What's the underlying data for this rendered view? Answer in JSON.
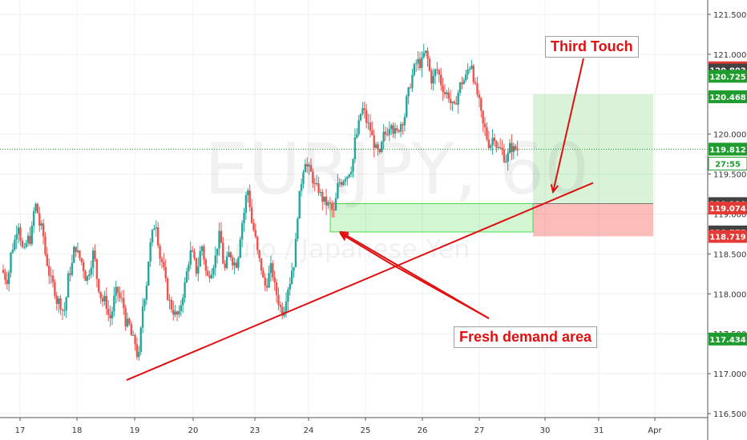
{
  "chart_data": {
    "type": "candlestick",
    "symbol_watermark": "EURJPY, 60",
    "subtitle_watermark": "Euro / Japanese Yen",
    "x_ticks": [
      "17",
      "18",
      "19",
      "20",
      "23",
      "24",
      "25",
      "26",
      "27",
      "30",
      "31",
      "Apr"
    ],
    "y_ticks": [
      "116.500",
      "117.000",
      "117.500",
      "118.000",
      "118.500",
      "119.000",
      "119.500",
      "120.000",
      "120.500",
      "121.000",
      "121.500"
    ],
    "ylim": [
      116.45,
      121.68
    ],
    "grid": true,
    "current_price": 119.812,
    "countdown": "27:55",
    "price_tags": [
      {
        "label": "120.831",
        "value": 120.831,
        "color": "#e53935"
      },
      {
        "label": "120.803",
        "value": 120.803,
        "color": "#424242"
      },
      {
        "label": "120.725",
        "value": 120.725,
        "color": "#1e9c2e"
      },
      {
        "label": "120.468",
        "value": 120.468,
        "color": "#1e9c2e"
      },
      {
        "label": "119.812",
        "value": 119.812,
        "color": "#1e9c2e"
      },
      {
        "label": "27:55",
        "value": 119.63,
        "color": "#ffffff"
      },
      {
        "label": "119.130",
        "value": 119.13,
        "color": "#424242"
      },
      {
        "label": "119.074",
        "value": 119.074,
        "color": "#e53935"
      },
      {
        "label": "118.775",
        "value": 118.775,
        "color": "#424242"
      },
      {
        "label": "118.719",
        "value": 118.719,
        "color": "#e53935"
      },
      {
        "label": "117.434",
        "value": 117.434,
        "color": "#1e9c2e"
      }
    ],
    "session_closes": [
      {
        "day": "17",
        "values": [
          118.2,
          118.6,
          118.9,
          118.5,
          118.7,
          119.1,
          118.8,
          118.4,
          118.1,
          117.9
        ]
      },
      {
        "day": "18",
        "values": [
          117.8,
          118.3,
          118.6,
          118.4,
          118.2,
          118.5,
          118.1,
          117.9,
          117.7,
          118.0
        ]
      },
      {
        "day": "19",
        "values": [
          117.9,
          117.6,
          117.4,
          117.2,
          118.0,
          118.6,
          118.9,
          118.4,
          118.0,
          117.8
        ]
      },
      {
        "day": "20",
        "values": [
          117.7,
          118.1,
          118.5,
          118.3,
          118.6,
          118.2,
          118.4,
          118.7,
          118.3,
          118.5
        ]
      },
      {
        "day": "23",
        "values": [
          118.4,
          118.9,
          119.3,
          118.8,
          118.4,
          118.1,
          118.3,
          118.0,
          117.8,
          118.1
        ]
      },
      {
        "day": "24",
        "values": [
          118.4,
          119.2,
          119.7,
          119.5,
          119.3,
          119.2,
          119.1,
          119.0,
          119.4,
          119.5
        ]
      },
      {
        "day": "25",
        "values": [
          119.6,
          120.0,
          120.3,
          120.1,
          119.9,
          119.7,
          120.0,
          120.2,
          120.0,
          120.2
        ]
      },
      {
        "day": "26",
        "values": [
          120.5,
          120.8,
          120.9,
          121.0,
          120.7,
          120.8,
          120.6,
          120.5,
          120.3,
          120.6
        ]
      },
      {
        "day": "27",
        "values": [
          120.7,
          120.9,
          120.5,
          120.1,
          119.9,
          120.0,
          119.8,
          119.7,
          119.85,
          119.81
        ]
      }
    ],
    "trendline": {
      "from": {
        "day": "18.85",
        "price": 116.92
      },
      "to": {
        "day": "31.0",
        "price": 119.39
      }
    },
    "demand_zone": {
      "from_day": "24.4",
      "to_day": "29.8",
      "top": 119.13,
      "bottom": 118.775
    },
    "target_zone": {
      "from_day": "29.8",
      "to_day": "31.95",
      "top": 120.5,
      "bottom": 119.13
    },
    "stop_zone": {
      "from_day": "29.8",
      "to_day": "31.95",
      "top": 119.13,
      "bottom": 118.72
    }
  },
  "annotations": {
    "third_touch": "Third Touch",
    "fresh_demand": "Fresh demand area"
  },
  "colors": {
    "up": "#26a69a",
    "down": "#ef5350",
    "trend": "#e01010",
    "demand_fill": "rgba(76,217,76,0.25)",
    "demand_stroke": "#4cd94c",
    "target_fill": "rgba(76,200,76,0.22)",
    "stop_fill": "rgba(244,67,54,0.35)"
  }
}
